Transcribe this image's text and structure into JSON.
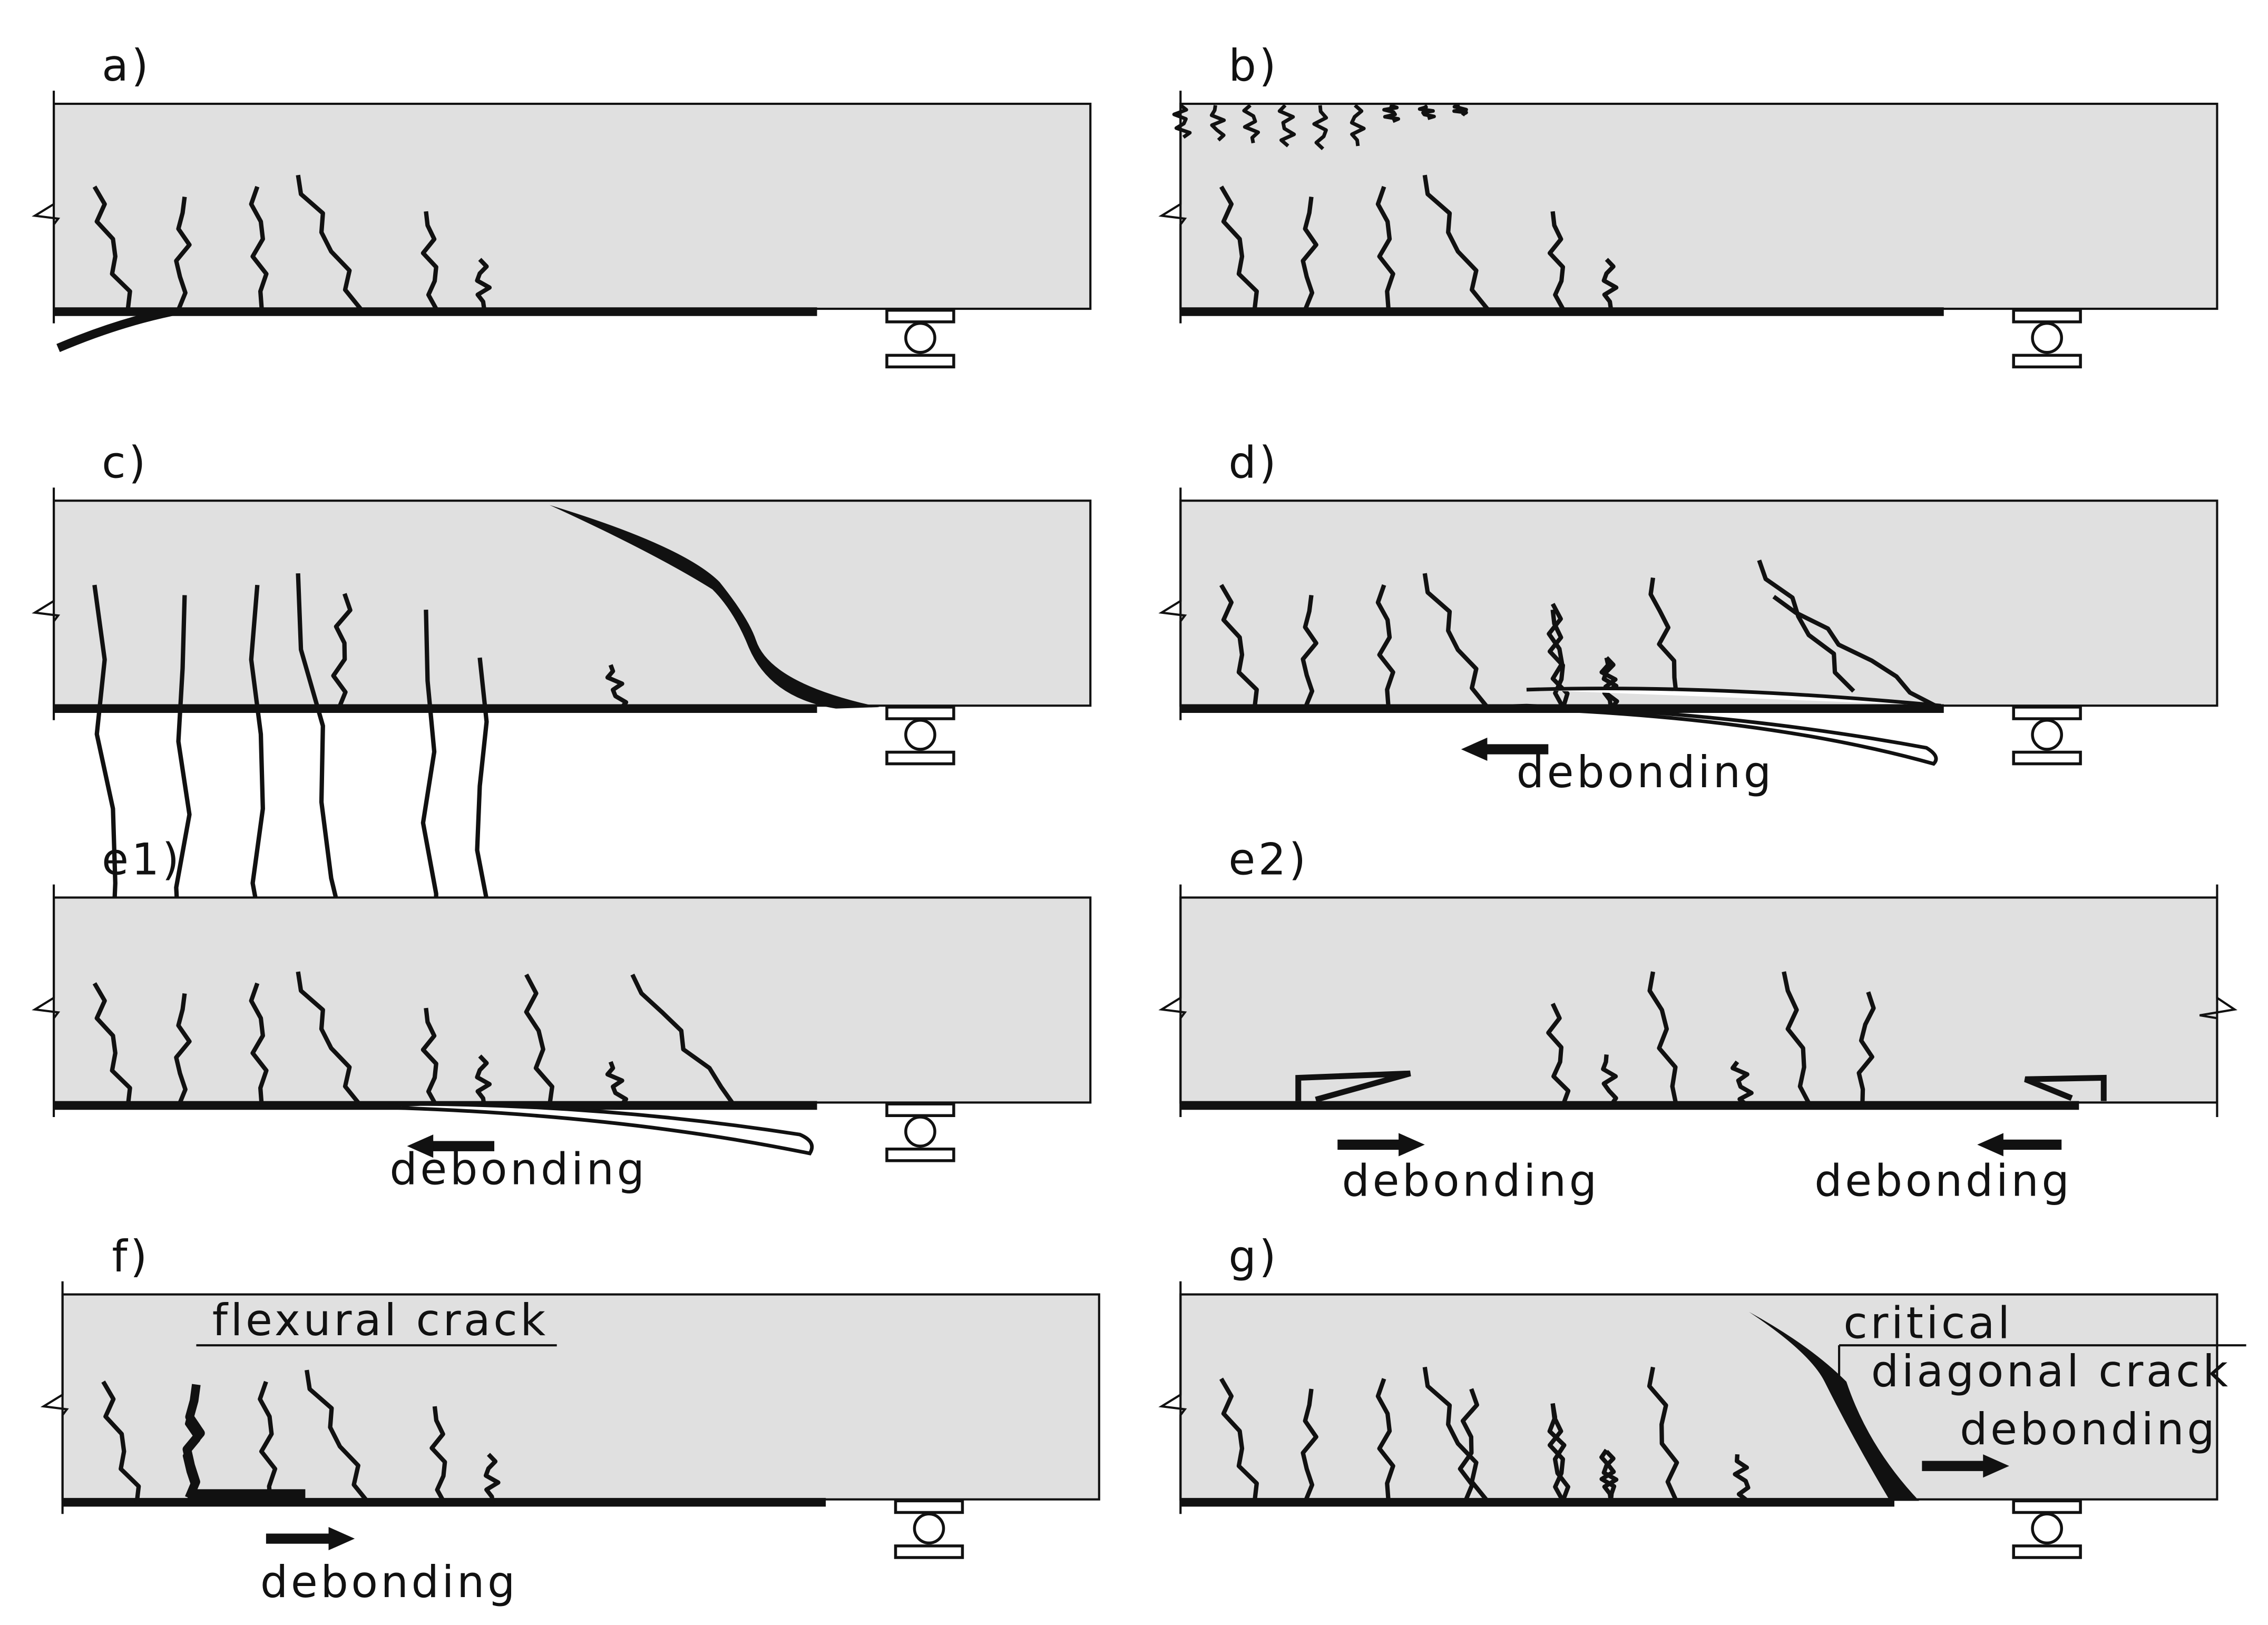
{
  "panels": [
    {
      "label": "a)",
      "texts": []
    },
    {
      "label": "b)",
      "texts": []
    },
    {
      "label": "c)",
      "texts": []
    },
    {
      "label": "d)",
      "texts": [
        "debonding"
      ]
    },
    {
      "label": "e1)",
      "texts": [
        "debonding"
      ]
    },
    {
      "label": "e2)",
      "texts": [
        "debonding",
        "debonding"
      ]
    },
    {
      "label": "f)",
      "texts": [
        "flexural crack",
        "debonding"
      ]
    },
    {
      "label": "g)",
      "texts": [
        "critical",
        "diagonal crack",
        "debonding"
      ]
    }
  ]
}
